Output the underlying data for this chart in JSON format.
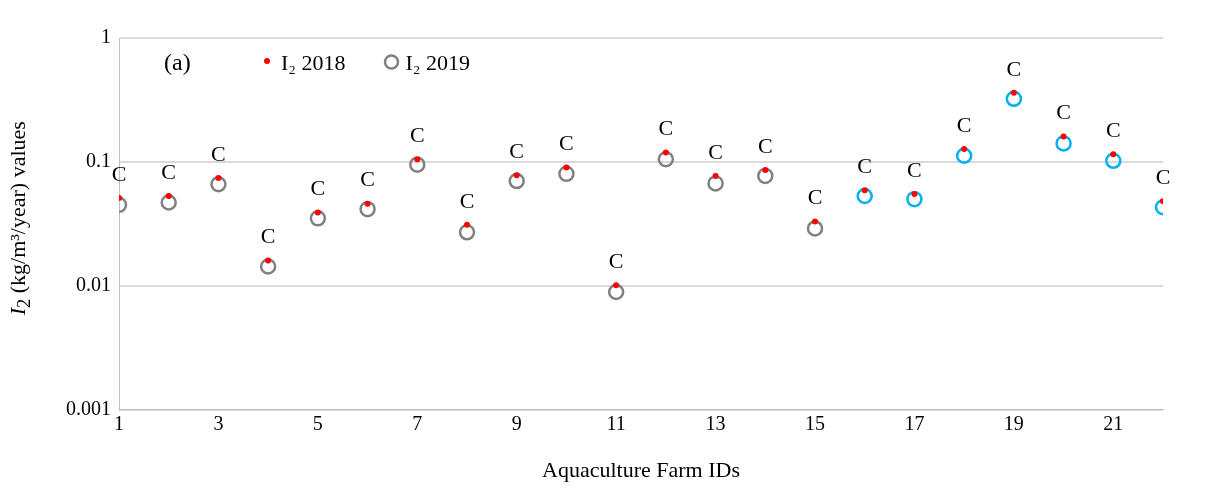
{
  "chart_data": {
    "type": "scatter",
    "xlabel": "Aquaculture Farm IDs",
    "ylabel": "I$_{2}$ (kg/m³/year) values",
    "annotations": [
      "(a)"
    ],
    "x": [
      1,
      2,
      3,
      4,
      5,
      6,
      7,
      8,
      9,
      10,
      11,
      12,
      13,
      14,
      15,
      16,
      17,
      18,
      19,
      20,
      21,
      22
    ],
    "series": [
      {
        "name": "I₂ 2018",
        "color": "#ff0000",
        "values": [
          0.051,
          0.053,
          0.074,
          0.016,
          0.039,
          0.046,
          0.105,
          0.031,
          0.078,
          0.09,
          0.0101,
          0.119,
          0.077,
          0.086,
          0.033,
          0.059,
          0.055,
          0.127,
          0.361,
          0.16,
          0.115,
          0.048
        ],
        "value_labels": [
          "C",
          "C",
          "C",
          "C",
          "C",
          "C",
          "C",
          "C",
          "C",
          "C",
          "C",
          "C",
          "C",
          "C",
          "C",
          "C",
          "C",
          "C",
          "C",
          "C",
          "C",
          "C"
        ]
      },
      {
        "name": "I₂ 2019",
        "color": "#808080",
        "colors": [
          "#808080",
          "#808080",
          "#808080",
          "#808080",
          "#808080",
          "#808080",
          "#808080",
          "#808080",
          "#808080",
          "#808080",
          "#808080",
          "#808080",
          "#808080",
          "#808080",
          "#808080",
          "#00b0f0",
          "#00b0f0",
          "#00b0f0",
          "#00b0f0",
          "#00b0f0",
          "#00b0f0",
          "#00b0f0"
        ],
        "values": [
          0.045,
          0.047,
          0.066,
          0.0143,
          0.035,
          0.0415,
          0.095,
          0.027,
          0.07,
          0.08,
          0.0089,
          0.105,
          0.067,
          0.077,
          0.029,
          0.053,
          0.05,
          0.112,
          0.323,
          0.141,
          0.102,
          0.043
        ]
      }
    ],
    "xlim": [
      1,
      22
    ],
    "xticks": [
      1,
      3,
      5,
      7,
      9,
      11,
      13,
      15,
      17,
      19,
      21
    ],
    "ylim": [
      0.001,
      1
    ],
    "yticks": [
      0.001,
      0.01,
      0.1,
      1
    ],
    "log": "y",
    "grid": "y",
    "legend": "top left",
    "marker": "circle"
  }
}
